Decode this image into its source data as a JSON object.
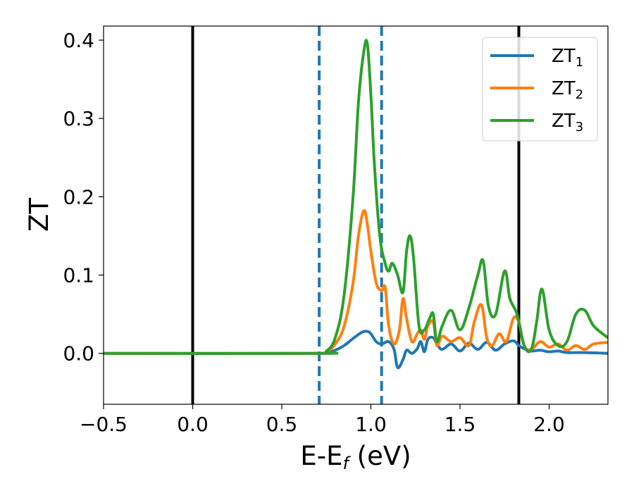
{
  "chart_data": {
    "type": "line",
    "xlabel": "E-E",
    "xlabel_sub": "f",
    "xlabel_unit": " (eV)",
    "ylabel": "ZT",
    "xlim": [
      -0.5,
      2.33
    ],
    "ylim": [
      -0.065,
      0.418
    ],
    "grid": false,
    "legend_position": "top-right",
    "x_ticks": [
      -0.5,
      0.0,
      0.5,
      1.0,
      1.5,
      2.0
    ],
    "x_tick_labels": [
      "−0.5",
      "0.0",
      "0.5",
      "1.0",
      "1.5",
      "2.0"
    ],
    "y_ticks": [
      0.0,
      0.1,
      0.2,
      0.3,
      0.4
    ],
    "y_tick_labels": [
      "0.0",
      "0.1",
      "0.2",
      "0.3",
      "0.4"
    ],
    "vertical_lines": [
      {
        "x": 0.0,
        "style": "solid",
        "color": "#000000"
      },
      {
        "x": 0.71,
        "style": "dashed",
        "color": "#1f77b4"
      },
      {
        "x": 1.06,
        "style": "dashed",
        "color": "#1f77b4"
      },
      {
        "x": 1.83,
        "style": "solid",
        "color": "#000000"
      }
    ],
    "series": [
      {
        "name": "ZT",
        "name_sub": "1",
        "color": "#1f77b4",
        "x": [
          -0.5,
          0.7,
          0.75,
          0.8,
          0.85,
          0.9,
          0.95,
          0.98,
          1.0,
          1.03,
          1.06,
          1.1,
          1.13,
          1.15,
          1.18,
          1.2,
          1.23,
          1.26,
          1.28,
          1.3,
          1.32,
          1.35,
          1.37,
          1.4,
          1.45,
          1.5,
          1.55,
          1.6,
          1.65,
          1.7,
          1.75,
          1.8,
          1.83,
          1.86,
          1.9,
          1.95,
          2.0,
          2.05,
          2.1,
          2.2,
          2.33
        ],
        "y": [
          0.0,
          0.0,
          0.001,
          0.004,
          0.01,
          0.019,
          0.027,
          0.028,
          0.025,
          0.015,
          0.012,
          0.015,
          0.005,
          -0.018,
          -0.008,
          0.004,
          0.0,
          0.006,
          0.015,
          0.002,
          0.018,
          0.02,
          0.012,
          0.005,
          0.012,
          0.003,
          0.013,
          0.005,
          0.014,
          0.004,
          0.012,
          0.016,
          0.01,
          0.006,
          0.003,
          0.004,
          0.002,
          0.003,
          0.001,
          0.001,
          0.0
        ]
      },
      {
        "name": "ZT",
        "name_sub": "2",
        "color": "#ff7f0e",
        "x": [
          -0.5,
          0.7,
          0.75,
          0.8,
          0.85,
          0.9,
          0.93,
          0.96,
          0.98,
          1.0,
          1.03,
          1.06,
          1.08,
          1.1,
          1.13,
          1.16,
          1.18,
          1.2,
          1.23,
          1.26,
          1.28,
          1.3,
          1.32,
          1.35,
          1.37,
          1.4,
          1.45,
          1.5,
          1.55,
          1.58,
          1.62,
          1.65,
          1.68,
          1.72,
          1.76,
          1.8,
          1.83,
          1.86,
          1.9,
          1.95,
          2.0,
          2.05,
          2.1,
          2.15,
          2.2,
          2.25,
          2.33
        ],
        "y": [
          0.0,
          0.0,
          0.002,
          0.012,
          0.035,
          0.09,
          0.15,
          0.182,
          0.165,
          0.13,
          0.09,
          0.08,
          0.084,
          0.035,
          0.012,
          0.03,
          0.07,
          0.045,
          0.015,
          0.025,
          0.03,
          0.018,
          0.035,
          0.04,
          0.01,
          0.022,
          0.015,
          0.02,
          0.01,
          0.04,
          0.062,
          0.02,
          0.01,
          0.025,
          0.015,
          0.045,
          0.04,
          0.01,
          0.005,
          0.015,
          0.008,
          0.012,
          0.004,
          0.01,
          0.005,
          0.012,
          0.014
        ]
      },
      {
        "name": "ZT",
        "name_sub": "3",
        "color": "#2ca02c",
        "x": [
          -0.5,
          0.7,
          0.75,
          0.8,
          0.85,
          0.9,
          0.93,
          0.96,
          0.98,
          1.0,
          1.02,
          1.05,
          1.08,
          1.1,
          1.12,
          1.15,
          1.18,
          1.2,
          1.22,
          1.24,
          1.27,
          1.3,
          1.33,
          1.35,
          1.37,
          1.4,
          1.45,
          1.5,
          1.55,
          1.6,
          1.63,
          1.66,
          1.7,
          1.75,
          1.78,
          1.82,
          1.86,
          1.9,
          1.93,
          1.96,
          2.0,
          2.05,
          2.1,
          2.15,
          2.2,
          2.25,
          2.33
        ],
        "y": [
          0.0,
          0.0,
          0.003,
          0.02,
          0.075,
          0.2,
          0.32,
          0.385,
          0.395,
          0.33,
          0.24,
          0.15,
          0.115,
          0.105,
          0.115,
          0.1,
          0.078,
          0.13,
          0.15,
          0.12,
          0.035,
          0.03,
          0.045,
          0.05,
          0.015,
          0.035,
          0.055,
          0.03,
          0.058,
          0.1,
          0.118,
          0.06,
          0.05,
          0.105,
          0.07,
          0.05,
          0.01,
          0.005,
          0.04,
          0.082,
          0.03,
          0.01,
          0.015,
          0.05,
          0.055,
          0.035,
          0.02
        ]
      }
    ]
  }
}
